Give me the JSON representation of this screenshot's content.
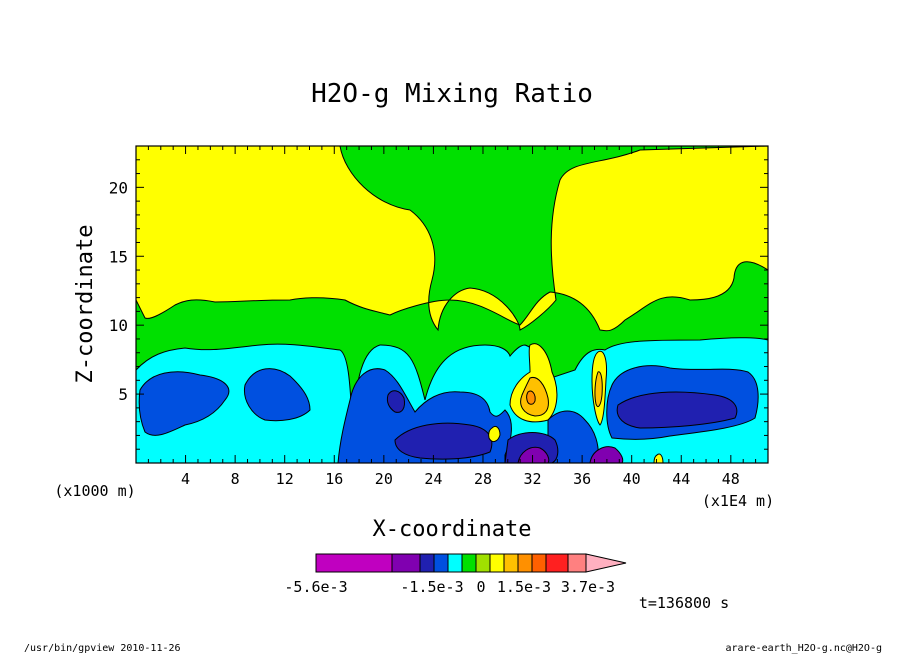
{
  "chart_data": {
    "type": "heatmap",
    "title": "H2O-g Mixing Ratio",
    "xlabel": "X-coordinate",
    "ylabel": "Z-coordinate",
    "x_unit_left": "(x1000 m)",
    "x_unit_right": "(x1E4 m)",
    "xlim": [
      0,
      51
    ],
    "ylim": [
      0,
      23
    ],
    "x_ticks": [
      4,
      8,
      12,
      16,
      20,
      24,
      28,
      32,
      36,
      40,
      44,
      48
    ],
    "y_ticks": [
      5,
      10,
      15,
      20
    ],
    "colorbar": {
      "colors": [
        "#c000c0",
        "#8000b0",
        "#2020b0",
        "#0050e0",
        "#00ffff",
        "#00e000",
        "#a0e000",
        "#ffff00",
        "#ffc000",
        "#ff9000",
        "#ff6000",
        "#ff2020",
        "#ff8080",
        "#ffb0c0"
      ],
      "labels": [
        "-5.6e-3",
        "-1.5e-3",
        "0",
        "1.5e-3",
        "3.7e-3"
      ]
    },
    "regions": [
      {
        "color": "#00ffff",
        "x": [
          0,
          51
        ],
        "z": [
          0,
          9
        ]
      },
      {
        "color": "#0050e0",
        "x": [
          1,
          8
        ],
        "z": [
          1.5,
          6
        ]
      },
      {
        "color": "#0050e0",
        "x": [
          9,
          15
        ],
        "z": [
          2.5,
          6.5
        ]
      },
      {
        "color": "#0050e0",
        "x": [
          17,
          29
        ],
        "z": [
          0,
          6.5
        ]
      },
      {
        "color": "#0050e0",
        "x": [
          36,
          50
        ],
        "z": [
          1,
          6.8
        ]
      },
      {
        "color": "#2020b0",
        "x": [
          20,
          25
        ],
        "z": [
          0.5,
          2.5
        ]
      },
      {
        "color": "#2020b0",
        "x": [
          38,
          49
        ],
        "z": [
          3,
          5
        ]
      },
      {
        "color": "#8000b0",
        "x": [
          29.5,
          33
        ],
        "z": [
          0,
          1.5
        ]
      },
      {
        "color": "#8000b0",
        "x": [
          37.5,
          40.5
        ],
        "z": [
          0,
          1.5
        ]
      },
      {
        "color": "#ffc000",
        "x": [
          30.5,
          33.5
        ],
        "z": [
          3.5,
          7
        ]
      },
      {
        "color": "#ffc000",
        "x": [
          37,
          38.5
        ],
        "z": [
          4,
          7.5
        ]
      },
      {
        "color": "#ff9000",
        "x": [
          31.2,
          32.8
        ],
        "z": [
          4.5,
          6
        ]
      }
    ],
    "annotation": "t=136800 s"
  },
  "footer": {
    "left": "/usr/bin/gpview   2010-11-26",
    "right": "arare-earth_H2O-g.nc@H2O-g"
  },
  "colors": {
    "background_fill": "#00e000",
    "upper_fill": "#ffff00"
  }
}
